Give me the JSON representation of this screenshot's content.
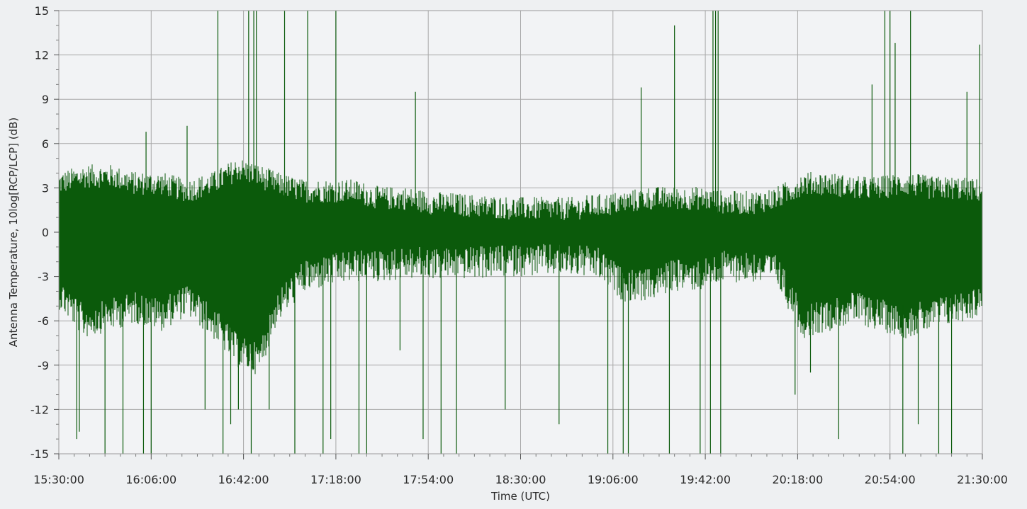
{
  "chart_data": {
    "type": "line",
    "title": "",
    "xlabel": "Time (UTC)",
    "ylabel": "Antenna Temperature, 10log[RCP/LCP] (dB)",
    "x_ticks": [
      "15:30:00",
      "16:06:00",
      "16:42:00",
      "17:18:00",
      "17:54:00",
      "18:30:00",
      "19:06:00",
      "19:42:00",
      "20:18:00",
      "20:54:00",
      "21:30:00"
    ],
    "y_ticks": [
      "-15",
      "-12",
      "-9",
      "-6",
      "-3",
      "0",
      "3",
      "6",
      "9",
      "12",
      "15"
    ],
    "xlim": [
      "15:30:00",
      "21:30:00"
    ],
    "ylim": [
      -15,
      15
    ],
    "grid": true,
    "legend": "none",
    "series": [
      {
        "color": "#0b5a0b",
        "envelope_x": [
          "15:30:00",
          "15:40:00",
          "15:50:00",
          "16:00:00",
          "16:10:00",
          "16:20:00",
          "16:30:00",
          "16:40:00",
          "16:48:00",
          "16:55:00",
          "17:05:00",
          "17:15:00",
          "17:25:00",
          "17:35:00",
          "17:45:00",
          "17:55:00",
          "18:10:00",
          "18:30:00",
          "18:50:00",
          "19:00:00",
          "19:10:00",
          "19:20:00",
          "19:30:00",
          "19:40:00",
          "19:50:00",
          "20:00:00",
          "20:10:00",
          "20:20:00",
          "20:30:00",
          "20:40:00",
          "20:50:00",
          "21:00:00",
          "21:10:00",
          "21:20:00",
          "21:30:00"
        ],
        "envelope_upper": [
          2.5,
          3.0,
          3.0,
          2.5,
          2.5,
          2.0,
          2.5,
          3.5,
          3.0,
          2.5,
          2.0,
          2.0,
          2.0,
          1.5,
          1.5,
          1.2,
          1.0,
          0.8,
          0.8,
          1.0,
          1.2,
          1.5,
          1.5,
          1.5,
          1.2,
          1.2,
          1.5,
          2.5,
          2.5,
          2.2,
          2.2,
          2.5,
          2.2,
          2.2,
          2.0
        ],
        "envelope_lower": [
          -3.0,
          -5.0,
          -4.5,
          -4.0,
          -4.5,
          -3.5,
          -5.0,
          -7.0,
          -7.5,
          -4.0,
          -2.0,
          -1.5,
          -1.2,
          -1.2,
          -1.0,
          -1.0,
          -1.0,
          -0.8,
          -0.8,
          -1.0,
          -2.5,
          -2.5,
          -1.8,
          -1.8,
          -1.2,
          -1.2,
          -1.5,
          -5.0,
          -4.5,
          -4.0,
          -4.5,
          -5.0,
          -4.5,
          -4.0,
          -3.5
        ],
        "spikes": [
          {
            "x": "15:37:00",
            "y": -14.0
          },
          {
            "x": "15:38:00",
            "y": -13.5
          },
          {
            "x": "15:48:00",
            "y": -15.0
          },
          {
            "x": "15:55:00",
            "y": -15.0
          },
          {
            "x": "16:03:00",
            "y": -15.0
          },
          {
            "x": "16:06:00",
            "y": -15.0
          },
          {
            "x": "16:04:00",
            "y": 6.8
          },
          {
            "x": "16:20:00",
            "y": 7.2
          },
          {
            "x": "16:27:00",
            "y": -12.0
          },
          {
            "x": "16:32:00",
            "y": 15.0
          },
          {
            "x": "16:34:00",
            "y": -15.0
          },
          {
            "x": "16:37:00",
            "y": -13.0
          },
          {
            "x": "16:40:00",
            "y": -12.0
          },
          {
            "x": "16:44:00",
            "y": 15.0
          },
          {
            "x": "16:45:00",
            "y": -15.0
          },
          {
            "x": "16:46:00",
            "y": 15.0
          },
          {
            "x": "16:47:00",
            "y": 15.0
          },
          {
            "x": "16:52:00",
            "y": -12.0
          },
          {
            "x": "16:58:00",
            "y": 15.0
          },
          {
            "x": "17:02:00",
            "y": -15.0
          },
          {
            "x": "17:07:00",
            "y": 15.0
          },
          {
            "x": "17:13:00",
            "y": -15.0
          },
          {
            "x": "17:16:00",
            "y": -14.0
          },
          {
            "x": "17:18:00",
            "y": 15.0
          },
          {
            "x": "17:27:00",
            "y": -15.0
          },
          {
            "x": "17:30:00",
            "y": -15.0
          },
          {
            "x": "17:43:00",
            "y": -8.0
          },
          {
            "x": "17:49:00",
            "y": 9.5
          },
          {
            "x": "17:52:00",
            "y": -14.0
          },
          {
            "x": "17:59:00",
            "y": -15.0
          },
          {
            "x": "18:05:00",
            "y": -15.0
          },
          {
            "x": "18:24:00",
            "y": -12.0
          },
          {
            "x": "18:45:00",
            "y": -13.0
          },
          {
            "x": "19:04:00",
            "y": -15.0
          },
          {
            "x": "19:10:00",
            "y": -15.0
          },
          {
            "x": "19:12:00",
            "y": -15.0
          },
          {
            "x": "19:17:00",
            "y": 9.8
          },
          {
            "x": "19:28:00",
            "y": -15.0
          },
          {
            "x": "19:30:00",
            "y": 14.0
          },
          {
            "x": "19:40:00",
            "y": -15.0
          },
          {
            "x": "19:44:00",
            "y": -15.0
          },
          {
            "x": "19:45:00",
            "y": 15.0
          },
          {
            "x": "19:46:00",
            "y": 15.0
          },
          {
            "x": "19:47:00",
            "y": 15.0
          },
          {
            "x": "19:48:00",
            "y": -15.0
          },
          {
            "x": "20:17:00",
            "y": -11.0
          },
          {
            "x": "20:23:00",
            "y": -9.5
          },
          {
            "x": "20:34:00",
            "y": -14.0
          },
          {
            "x": "20:47:00",
            "y": 10.0
          },
          {
            "x": "20:52:00",
            "y": 15.0
          },
          {
            "x": "20:54:00",
            "y": 15.0
          },
          {
            "x": "20:56:00",
            "y": 12.8
          },
          {
            "x": "20:59:00",
            "y": -15.0
          },
          {
            "x": "21:02:00",
            "y": 15.0
          },
          {
            "x": "21:05:00",
            "y": -13.0
          },
          {
            "x": "21:13:00",
            "y": -15.0
          },
          {
            "x": "21:18:00",
            "y": -15.0
          },
          {
            "x": "21:24:00",
            "y": 9.5
          },
          {
            "x": "21:29:00",
            "y": 12.7
          }
        ]
      }
    ]
  }
}
